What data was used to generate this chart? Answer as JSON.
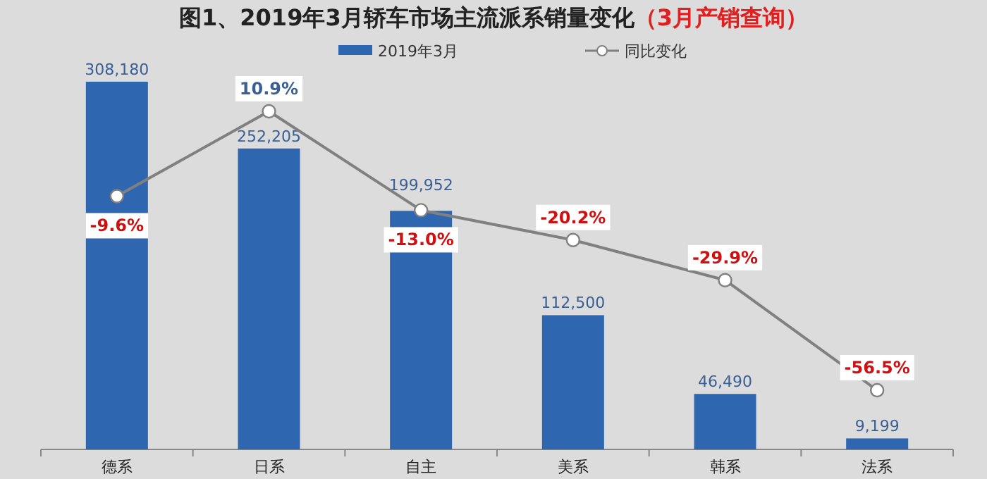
{
  "chart_data": {
    "type": "bar",
    "title": "图1、2019年3月轿车市场主流派系销量变化",
    "subtitle": "（3月产销查询）",
    "categories": [
      "德系",
      "日系",
      "自主",
      "美系",
      "韩系",
      "法系"
    ],
    "series": [
      {
        "name": "2019年3月",
        "type": "bar",
        "color": "#2f66b0",
        "values": [
          308180,
          252205,
          199952,
          112500,
          46490,
          9199
        ],
        "value_labels": [
          "308,180",
          "252,205",
          "199,952",
          "112,500",
          "46,490",
          "9,199"
        ]
      },
      {
        "name": "同比变化",
        "type": "line",
        "axis": "y2",
        "color": "#808080",
        "marker": "circle",
        "values": [
          -9.6,
          10.9,
          -13.0,
          -20.2,
          -29.9,
          -56.5
        ],
        "value_labels": [
          "-9.6%",
          "10.9%",
          "-13.0%",
          "-20.2%",
          "-29.9%",
          "-56.5%"
        ]
      }
    ],
    "legend": "top",
    "tick_labels": "x"
  }
}
